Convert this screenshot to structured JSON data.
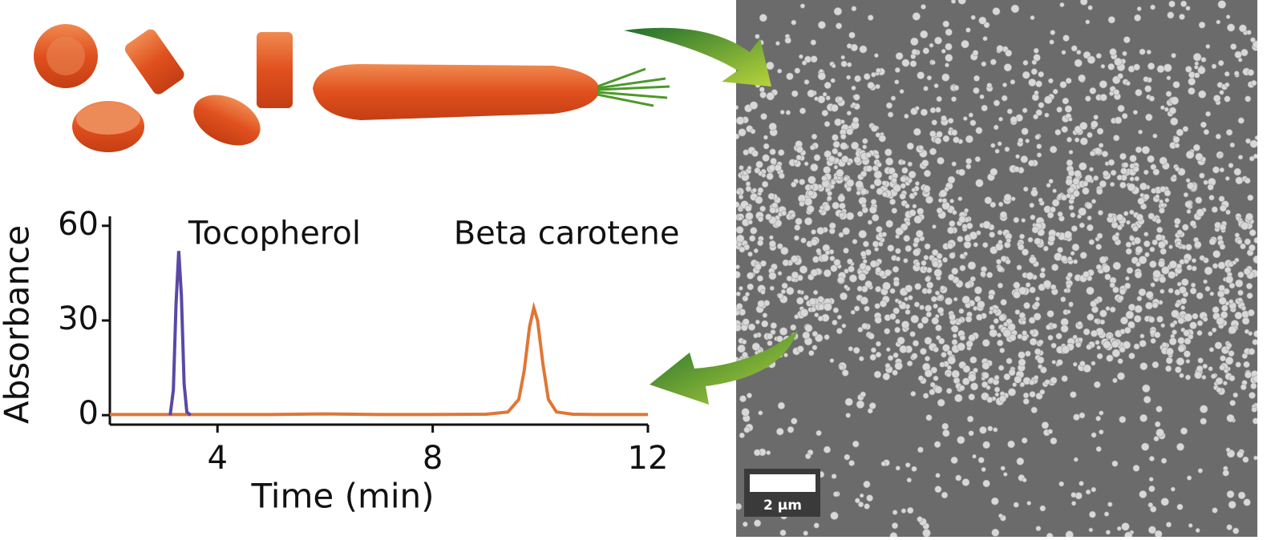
{
  "chart_data": {
    "type": "line",
    "x_label": "Time (min)",
    "y_label": "Absorbance",
    "xlim": [
      2,
      12
    ],
    "xticks": [
      4,
      8,
      12
    ],
    "ylim": [
      -3,
      63
    ],
    "yticks": [
      0,
      30,
      60
    ],
    "series": [
      {
        "name": "Tocopherol",
        "color": "#5a48a6",
        "x": [
          3.12,
          3.18,
          3.23,
          3.28,
          3.33,
          3.38,
          3.43,
          3.5
        ],
        "values": [
          0,
          8,
          35,
          52,
          38,
          10,
          1,
          0
        ]
      },
      {
        "name": "Beta carotene",
        "color": "#e07635",
        "x": [
          2,
          3,
          4,
          5,
          6,
          7,
          8,
          9,
          9.4,
          9.6,
          9.7,
          9.8,
          9.88,
          9.95,
          10.05,
          10.15,
          10.3,
          10.6,
          11,
          12
        ],
        "values": [
          0.2,
          0.2,
          0.2,
          0.2,
          0.4,
          0.2,
          0.2,
          0.3,
          1,
          5,
          14,
          28,
          34,
          30,
          16,
          5,
          1,
          0.3,
          0.2,
          0.2
        ]
      }
    ]
  },
  "sem_image": {
    "scale_bar_label": "2 μm"
  }
}
